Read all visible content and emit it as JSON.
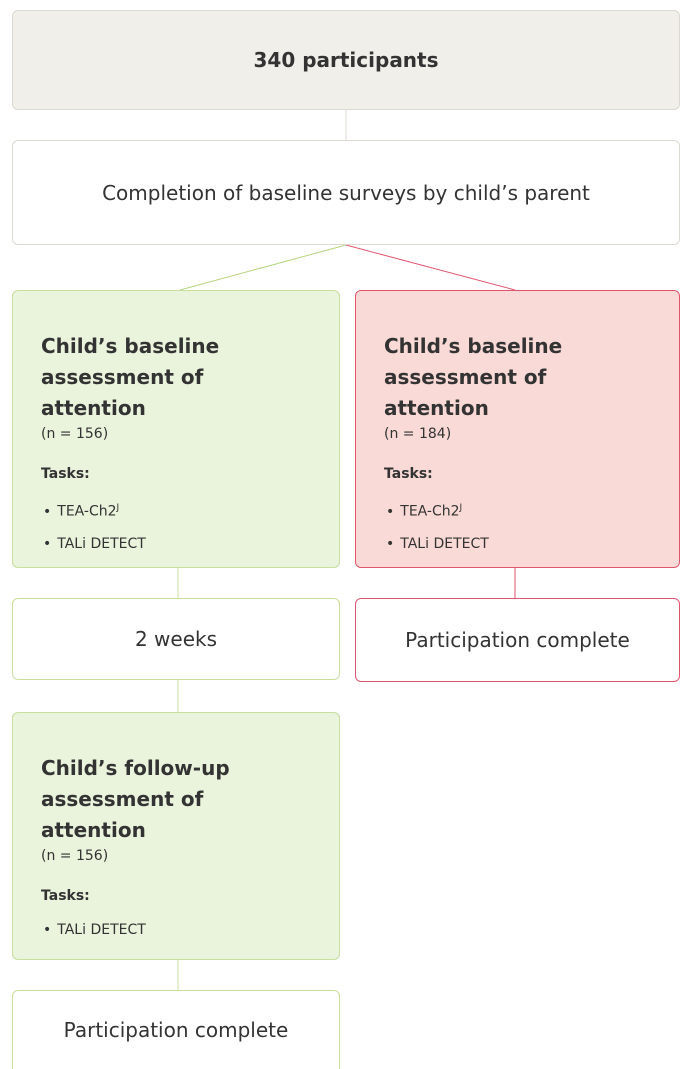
{
  "nodes": [
    {
      "label": "340 participants"
    },
    {
      "label": "Completion of baseline surveys by child’s parent"
    },
    {
      "title": "Child’s baseline assessment of attention",
      "n": "(n = 156)",
      "tasks_label": "Tasks:",
      "tasks": [
        {
          "text": "TEA-Ch2",
          "sup": "J"
        },
        {
          "text": "TALi DETECT"
        }
      ]
    },
    {
      "title": "Child’s baseline assessment of attention",
      "n": "(n = 184)",
      "tasks_label": "Tasks:",
      "tasks": [
        {
          "text": "TEA-Ch2",
          "sup": "J"
        },
        {
          "text": "TALi DETECT"
        }
      ]
    },
    {
      "label": "2 weeks"
    },
    {
      "label": "Participation complete"
    },
    {
      "title": "Child’s follow-up assessment of attention",
      "n": "(n = 156)",
      "tasks_label": "Tasks:",
      "tasks": [
        {
          "text": "TALi DETECT"
        }
      ]
    },
    {
      "label": "Participation complete"
    }
  ]
}
